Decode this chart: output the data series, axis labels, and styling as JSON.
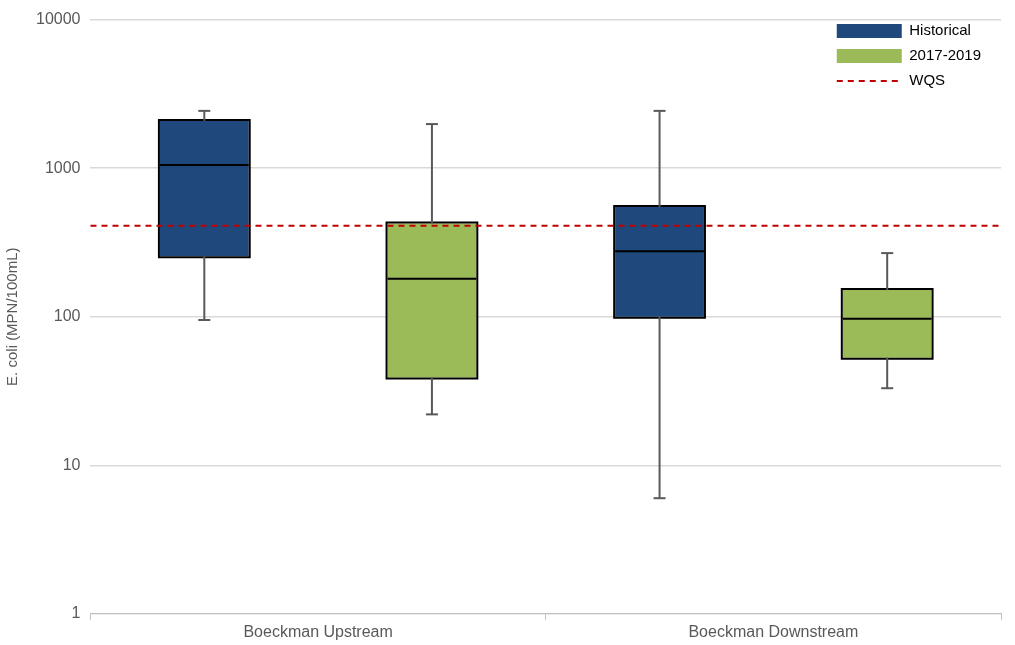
{
  "chart_data": {
    "type": "box",
    "ylabel": "E. coli (MPN/100mL)",
    "categories": [
      "Boeckman Upstream",
      "Boeckman Downstream"
    ],
    "series": [
      {
        "name": "Historical",
        "color": "#1f497d",
        "boxes": [
          {
            "low": 95,
            "q1": 255,
            "median": 1050,
            "q3": 2080,
            "high": 2430
          },
          {
            "low": 6,
            "q1": 100,
            "median": 276,
            "q3": 547,
            "high": 2430
          }
        ]
      },
      {
        "name": "2017-2019",
        "color": "#9bbb59",
        "boxes": [
          {
            "low": 22,
            "q1": 39,
            "median": 180,
            "q3": 424,
            "high": 1980
          },
          {
            "low": 33,
            "q1": 53,
            "median": 97,
            "q3": 151,
            "high": 268
          }
        ]
      }
    ],
    "ref_lines": [
      {
        "axis": "y",
        "value": 410,
        "label": "WQS",
        "color": "#c00000",
        "line_style": "dashed"
      }
    ],
    "log": "y",
    "ylim": [
      1,
      10000
    ],
    "yticks": [
      1,
      10,
      100,
      1000,
      10000
    ],
    "grid": "y",
    "legend": "top right"
  }
}
